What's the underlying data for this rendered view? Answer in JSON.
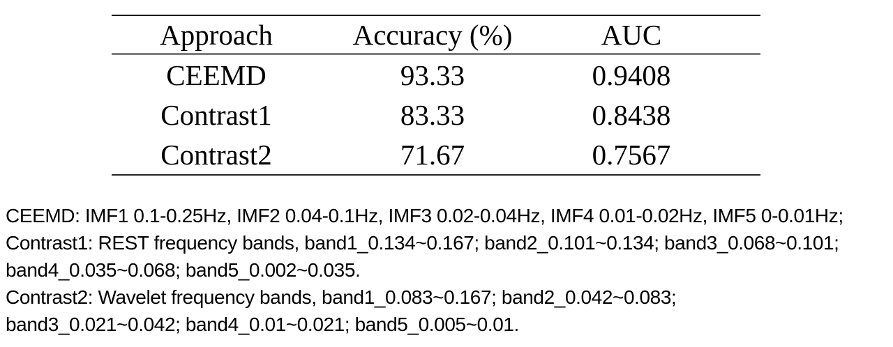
{
  "table": {
    "headers": [
      "Approach",
      "Accuracy (%)",
      "AUC"
    ],
    "rows": [
      {
        "approach": "CEEMD",
        "accuracy": "93.33",
        "auc": "0.9408"
      },
      {
        "approach": "Contrast1",
        "accuracy": "83.33",
        "auc": "0.8438"
      },
      {
        "approach": "Contrast2",
        "accuracy": "71.67",
        "auc": "0.7567"
      }
    ]
  },
  "notes": {
    "lines": [
      "CEEMD: IMF1 0.1-0.25Hz, IMF2 0.04-0.1Hz, IMF3 0.02-0.04Hz, IMF4 0.01-0.02Hz, IMF5 0-0.01Hz;",
      "Contrast1: REST frequency bands, band1_0.134~0.167; band2_0.101~0.134; band3_0.068~0.101;",
      "band4_0.035~0.068; band5_0.002~0.035.",
      "Contrast2: Wavelet frequency bands, band1_0.083~0.167; band2_0.042~0.083;",
      "band3_0.021~0.042; band4_0.01~0.021; band5_0.005~0.01."
    ]
  },
  "chart_data": {
    "type": "table",
    "columns": [
      "Approach",
      "Accuracy (%)",
      "AUC"
    ],
    "rows": [
      [
        "CEEMD",
        93.33,
        0.9408
      ],
      [
        "Contrast1",
        83.33,
        0.8438
      ],
      [
        "Contrast2",
        71.67,
        0.7567
      ]
    ]
  },
  "colors": {
    "text": "#000000",
    "top_rule": "#1c1c1c",
    "mid_rule": "#7f7f7f",
    "bottom_rule": "#262626",
    "background": "#ffffff"
  }
}
